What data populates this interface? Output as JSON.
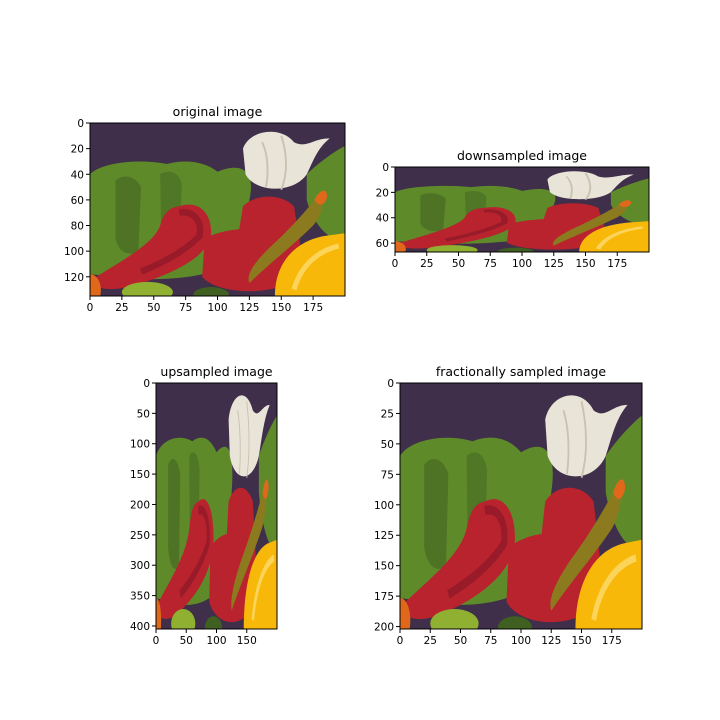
{
  "figure": {
    "background": "#ffffff"
  },
  "chart_data": [
    {
      "type": "heatmap",
      "image": "peppers",
      "title": "original image",
      "xlabel": "",
      "ylabel": "",
      "xlim": [
        0,
        200
      ],
      "ylim": [
        0,
        135
      ],
      "xticks": [
        "0",
        "25",
        "50",
        "75",
        "100",
        "125",
        "150",
        "175"
      ],
      "yticks": [
        "0",
        "20",
        "40",
        "60",
        "80",
        "100",
        "120"
      ]
    },
    {
      "type": "heatmap",
      "image": "peppers",
      "title": "downsampled image",
      "xlabel": "",
      "ylabel": "",
      "xlim": [
        0,
        200
      ],
      "ylim": [
        0,
        67
      ],
      "xticks": [
        "0",
        "25",
        "50",
        "75",
        "100",
        "125",
        "150",
        "175"
      ],
      "yticks": [
        "0",
        "20",
        "40",
        "60"
      ]
    },
    {
      "type": "heatmap",
      "image": "peppers",
      "title": "upsampled image",
      "xlabel": "",
      "ylabel": "",
      "xlim": [
        0,
        200
      ],
      "ylim": [
        0,
        405
      ],
      "xticks": [
        "0",
        "50",
        "100",
        "150"
      ],
      "yticks": [
        "0",
        "50",
        "100",
        "150",
        "200",
        "250",
        "300",
        "350",
        "400"
      ]
    },
    {
      "type": "heatmap",
      "image": "peppers",
      "title": "fractionally sampled image",
      "xlabel": "",
      "ylabel": "",
      "xlim": [
        0,
        200
      ],
      "ylim": [
        0,
        202
      ],
      "xticks": [
        "0",
        "25",
        "50",
        "75",
        "100",
        "125",
        "150",
        "175"
      ],
      "yticks": [
        "0",
        "25",
        "50",
        "75",
        "100",
        "125",
        "150",
        "175",
        "200"
      ]
    }
  ],
  "palette": {
    "bg_purple": "#3f2f4a",
    "green_pepper": "#5f8a2a",
    "green_dark": "#3f6020",
    "red_pepper": "#b8232e",
    "red_dark": "#7a1424",
    "onion": "#e8e4d8",
    "yellow_pepper": "#f7b80a",
    "orange": "#e0681a"
  }
}
